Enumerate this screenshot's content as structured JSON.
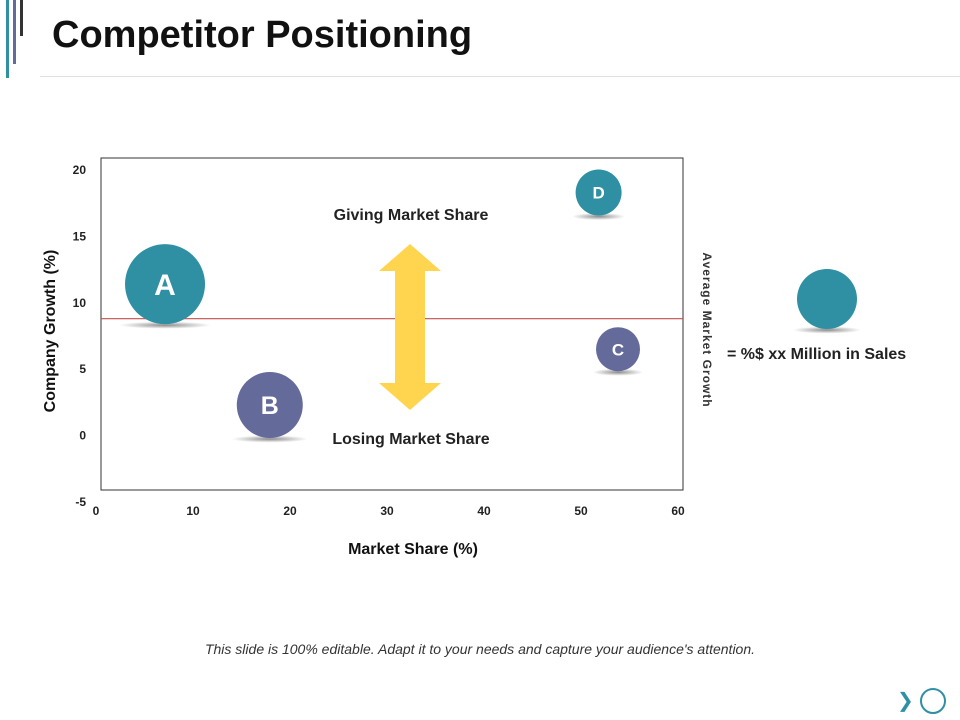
{
  "header": {
    "title": "Competitor Positioning"
  },
  "chart_data": {
    "type": "scatter",
    "xlabel": "Market Share (%)",
    "ylabel": "Company Growth (%)",
    "xlim": [
      0,
      60
    ],
    "ylim": [
      -5,
      20
    ],
    "x_ticks": [
      "0",
      "10",
      "20",
      "30",
      "40",
      "50",
      "60"
    ],
    "y_ticks": [
      "20",
      "15",
      "10",
      "5",
      "0",
      "-5"
    ],
    "average_line": {
      "y": 7.9,
      "label": "Average Market Growth",
      "color": "#c0504d"
    },
    "points": [
      {
        "label": "A",
        "x": 6.6,
        "y": 10.5,
        "size": 40,
        "color": "#2f8fa3"
      },
      {
        "label": "B",
        "x": 17.4,
        "y": 1.4,
        "size": 33,
        "color": "#646b9b"
      },
      {
        "label": "C",
        "x": 53.3,
        "y": 5.6,
        "size": 22,
        "color": "#646b9b"
      },
      {
        "label": "D",
        "x": 51.3,
        "y": 17.4,
        "size": 23,
        "color": "#2f8fa3"
      }
    ],
    "annotations": {
      "top": "Giving Market Share",
      "bottom": "Losing Market Share",
      "arrow_color": "#ffd54f"
    },
    "legend": {
      "position": "right",
      "text": "= %$ xx Million in Sales",
      "color": "#2f8fa3"
    }
  },
  "footer": {
    "text": "This slide is 100% editable. Adapt it to your needs and capture your audience's attention."
  },
  "nav": {
    "next_symbol": "❯"
  }
}
